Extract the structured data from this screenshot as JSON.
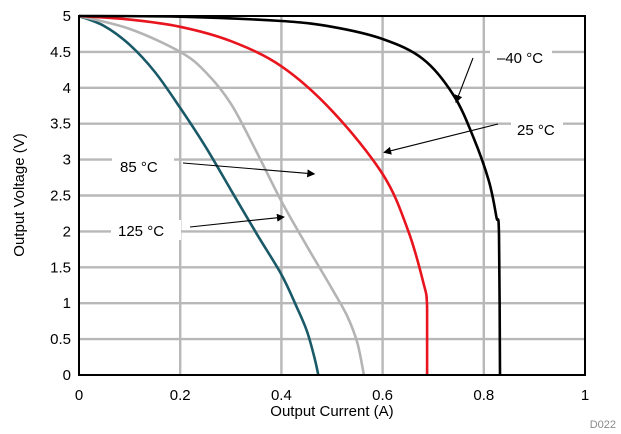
{
  "chart_data": {
    "type": "line",
    "title": "",
    "xlabel": "Output Current (A)",
    "ylabel": "Output Voltage (V)",
    "xlim": [
      0,
      1
    ],
    "ylim": [
      0,
      5
    ],
    "x_ticks": [
      0,
      0.2,
      0.4,
      0.6,
      0.8,
      1
    ],
    "x_tick_labels": [
      "0",
      "0.2",
      "0.4",
      "0.6",
      "0.8",
      "1"
    ],
    "y_ticks": [
      0,
      0.5,
      1,
      1.5,
      2,
      2.5,
      3,
      3.5,
      4,
      4.5,
      5
    ],
    "y_tick_labels": [
      "0",
      "0.5",
      "1",
      "1.5",
      "2",
      "2.5",
      "3",
      "3.5",
      "4",
      "4.5",
      "5"
    ],
    "grid": true,
    "legend": "none",
    "figure_code": "D022",
    "series": [
      {
        "name": "125 °C",
        "color": "#1a5a68",
        "points": [
          [
            0,
            5
          ],
          [
            0.05,
            4.86
          ],
          [
            0.1,
            4.6
          ],
          [
            0.15,
            4.22
          ],
          [
            0.2,
            3.72
          ],
          [
            0.25,
            3.18
          ],
          [
            0.3,
            2.58
          ],
          [
            0.35,
            1.98
          ],
          [
            0.4,
            1.4
          ],
          [
            0.43,
            0.95
          ],
          [
            0.45,
            0.62
          ],
          [
            0.465,
            0.25
          ],
          [
            0.473,
            0
          ]
        ]
      },
      {
        "name": "85 °C",
        "color": "#b4b4b4",
        "points": [
          [
            0,
            5
          ],
          [
            0.1,
            4.82
          ],
          [
            0.2,
            4.5
          ],
          [
            0.25,
            4.22
          ],
          [
            0.3,
            3.78
          ],
          [
            0.35,
            3.12
          ],
          [
            0.4,
            2.42
          ],
          [
            0.45,
            1.8
          ],
          [
            0.5,
            1.2
          ],
          [
            0.53,
            0.82
          ],
          [
            0.55,
            0.45
          ],
          [
            0.563,
            0
          ]
        ]
      },
      {
        "name": "25 °C",
        "color": "#e8141e",
        "points": [
          [
            0,
            5
          ],
          [
            0.1,
            4.95
          ],
          [
            0.2,
            4.85
          ],
          [
            0.3,
            4.65
          ],
          [
            0.4,
            4.3
          ],
          [
            0.5,
            3.68
          ],
          [
            0.6,
            2.8
          ],
          [
            0.65,
            2.02
          ],
          [
            0.68,
            1.3
          ],
          [
            0.688,
            0.95
          ],
          [
            0.688,
            0
          ]
        ]
      },
      {
        "name": "–40 °C",
        "color": "#000000",
        "points": [
          [
            0,
            5
          ],
          [
            0.2,
            4.99
          ],
          [
            0.4,
            4.93
          ],
          [
            0.5,
            4.85
          ],
          [
            0.6,
            4.68
          ],
          [
            0.68,
            4.4
          ],
          [
            0.74,
            3.9
          ],
          [
            0.78,
            3.3
          ],
          [
            0.81,
            2.7
          ],
          [
            0.825,
            2.2
          ],
          [
            0.83,
            1.95
          ],
          [
            0.832,
            0
          ]
        ]
      }
    ],
    "annotations": [
      {
        "text": "–40 °C",
        "target": [
          0.745,
          3.8
        ]
      },
      {
        "text": "25 °C",
        "target": [
          0.603,
          3.1
        ]
      },
      {
        "text": "85 °C",
        "target": [
          0.465,
          2.8
        ]
      },
      {
        "text": "125 °C",
        "target": [
          0.405,
          2.2
        ]
      }
    ]
  }
}
